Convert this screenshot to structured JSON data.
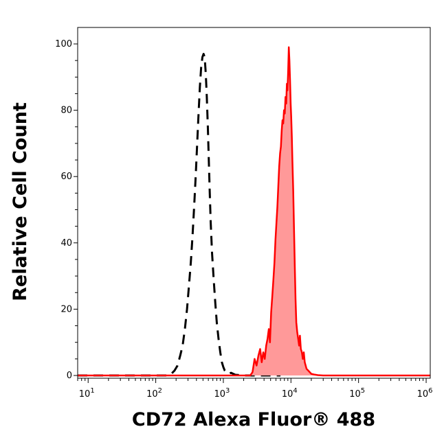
{
  "chart_data": {
    "type": "area",
    "xlabel": "CD72 Alexa Fluor® 488",
    "ylabel": "Relative Cell Count",
    "x_scale": "log",
    "xlim": [
      7,
      1150000
    ],
    "ylim": [
      0,
      100
    ],
    "y_ticks": [
      0,
      20,
      40,
      60,
      80,
      100
    ],
    "x_ticks": [
      {
        "value": 10,
        "base": "10",
        "exp": "1"
      },
      {
        "value": 100,
        "base": "10",
        "exp": "2"
      },
      {
        "value": 1000,
        "base": "10",
        "exp": "3"
      },
      {
        "value": 10000,
        "base": "10",
        "exp": "4"
      },
      {
        "value": 100000,
        "base": "10",
        "exp": "5"
      },
      {
        "value": 1000000,
        "base": "10",
        "exp": "6"
      }
    ],
    "grid": false,
    "series": [
      {
        "style": "dashed",
        "color": "#000000",
        "fill": "none",
        "x": [
          7,
          150,
          170,
          190,
          210,
          230,
          250,
          270,
          290,
          310,
          330,
          350,
          370,
          390,
          410,
          430,
          450,
          470,
          490,
          510,
          530,
          550,
          570,
          590,
          610,
          630,
          650,
          680,
          720,
          760,
          800,
          850,
          900,
          950,
          1000,
          1050,
          1100,
          1200,
          1300,
          1500,
          2000,
          7000
        ],
        "y": [
          0,
          0,
          0.5,
          1.5,
          3,
          6,
          9,
          14,
          20,
          27,
          34,
          42,
          51,
          60,
          70,
          79,
          87,
          93,
          96,
          97,
          96,
          91,
          84,
          75,
          65,
          55,
          46,
          37,
          29,
          22,
          16,
          11,
          7,
          4,
          2.5,
          1.5,
          1,
          0.5,
          0.8,
          0.2,
          0,
          0
        ]
      },
      {
        "style": "solid",
        "color": "#ff0000",
        "fill": "#ff9999",
        "x": [
          7,
          2500,
          2700,
          2900,
          3100,
          3300,
          3500,
          3700,
          3900,
          4100,
          4300,
          4500,
          4700,
          4900,
          5100,
          5300,
          5500,
          5700,
          5900,
          6100,
          6300,
          6500,
          6700,
          6900,
          7100,
          7300,
          7500,
          7700,
          7900,
          8100,
          8300,
          8500,
          8700,
          8900,
          9100,
          9300,
          9500,
          9700,
          9900,
          10100,
          10300,
          10500,
          10800,
          11100,
          11400,
          11700,
          12000,
          12400,
          12800,
          13200,
          13600,
          14000,
          14500,
          15000,
          15500,
          16000,
          16500,
          17000,
          18000,
          19000,
          20000,
          22000,
          25000,
          30000,
          1150000
        ],
        "y": [
          0,
          0,
          1,
          5,
          3,
          6,
          8,
          4,
          7,
          5,
          9,
          11,
          14,
          10,
          19,
          24,
          29,
          34,
          41,
          46,
          51,
          57,
          63,
          67,
          69,
          74,
          77,
          76,
          80,
          79,
          84,
          82,
          88,
          86,
          92,
          99,
          95,
          89,
          82,
          78,
          72,
          65,
          56,
          44,
          33,
          23,
          16,
          13,
          11,
          9,
          12,
          8,
          7,
          5,
          7,
          4,
          3,
          2,
          1.5,
          1,
          0.5,
          0.3,
          0.1,
          0,
          0
        ]
      }
    ]
  }
}
